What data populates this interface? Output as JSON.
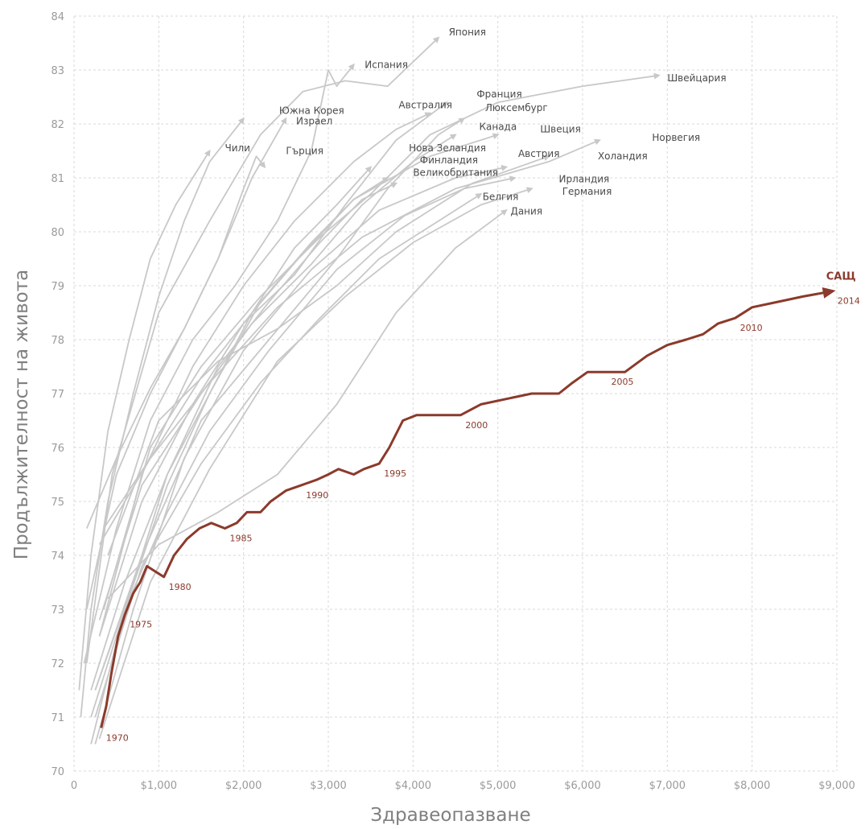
{
  "chart_data": {
    "type": "line",
    "xlabel": "Здравеопазване",
    "ylabel": "Продължителност на живота",
    "xlim": [
      0,
      9000
    ],
    "ylim": [
      70,
      84
    ],
    "x_ticks": [
      {
        "value": 0,
        "label": "0"
      },
      {
        "value": 1000,
        "label": "$1,000"
      },
      {
        "value": 2000,
        "label": "$2,000"
      },
      {
        "value": 3000,
        "label": "$3,000"
      },
      {
        "value": 4000,
        "label": "$4,000"
      },
      {
        "value": 5000,
        "label": "$5,000"
      },
      {
        "value": 6000,
        "label": "$6,000"
      },
      {
        "value": 7000,
        "label": "$7,000"
      },
      {
        "value": 8000,
        "label": "$8,000"
      },
      {
        "value": 9000,
        "label": "$9,000"
      }
    ],
    "y_ticks": [
      {
        "value": 70,
        "label": "70"
      },
      {
        "value": 71,
        "label": "71"
      },
      {
        "value": 72,
        "label": "72"
      },
      {
        "value": 73,
        "label": "73"
      },
      {
        "value": 74,
        "label": "74"
      },
      {
        "value": 75,
        "label": "75"
      },
      {
        "value": 76,
        "label": "76"
      },
      {
        "value": 77,
        "label": "77"
      },
      {
        "value": 78,
        "label": "78"
      },
      {
        "value": 79,
        "label": "79"
      },
      {
        "value": 80,
        "label": "80"
      },
      {
        "value": 81,
        "label": "81"
      },
      {
        "value": 82,
        "label": "82"
      },
      {
        "value": 83,
        "label": "83"
      },
      {
        "value": 84,
        "label": "84"
      }
    ],
    "grid": true,
    "colors": {
      "highlight": "#8b3a2b",
      "others": "#c8c8c8",
      "grid": "#d9d9d9"
    },
    "highlight_series": {
      "name": "САЩ",
      "points": [
        [
          320,
          70.8
        ],
        [
          380,
          71.2
        ],
        [
          440,
          71.8
        ],
        [
          520,
          72.5
        ],
        [
          600,
          72.9
        ],
        [
          700,
          73.3
        ],
        [
          780,
          73.5
        ],
        [
          860,
          73.8
        ],
        [
          960,
          73.7
        ],
        [
          1060,
          73.6
        ],
        [
          1180,
          74.0
        ],
        [
          1330,
          74.3
        ],
        [
          1480,
          74.5
        ],
        [
          1620,
          74.6
        ],
        [
          1780,
          74.5
        ],
        [
          1920,
          74.6
        ],
        [
          2040,
          74.8
        ],
        [
          2200,
          74.8
        ],
        [
          2320,
          75.0
        ],
        [
          2500,
          75.2
        ],
        [
          2680,
          75.3
        ],
        [
          2860,
          75.4
        ],
        [
          3000,
          75.5
        ],
        [
          3120,
          75.6
        ],
        [
          3300,
          75.5
        ],
        [
          3420,
          75.6
        ],
        [
          3600,
          75.7
        ],
        [
          3720,
          76.0
        ],
        [
          3880,
          76.5
        ],
        [
          4040,
          76.6
        ],
        [
          4280,
          76.6
        ],
        [
          4560,
          76.6
        ],
        [
          4800,
          76.8
        ],
        [
          5100,
          76.9
        ],
        [
          5400,
          77.0
        ],
        [
          5720,
          77.0
        ],
        [
          5880,
          77.2
        ],
        [
          6060,
          77.4
        ],
        [
          6280,
          77.4
        ],
        [
          6500,
          77.4
        ],
        [
          6760,
          77.7
        ],
        [
          7000,
          77.9
        ],
        [
          7220,
          78.0
        ],
        [
          7420,
          78.1
        ],
        [
          7600,
          78.3
        ],
        [
          7800,
          78.4
        ],
        [
          8000,
          78.6
        ],
        [
          8300,
          78.7
        ],
        [
          8600,
          78.8
        ],
        [
          8950,
          78.9
        ]
      ],
      "year_labels": [
        {
          "year": "1970",
          "x": 320,
          "y": 70.8
        },
        {
          "year": "1975",
          "x": 600,
          "y": 72.9
        },
        {
          "year": "1980",
          "x": 1060,
          "y": 73.6
        },
        {
          "year": "1985",
          "x": 1780,
          "y": 74.5
        },
        {
          "year": "1990",
          "x": 2680,
          "y": 75.3
        },
        {
          "year": "1995",
          "x": 3600,
          "y": 75.7
        },
        {
          "year": "2000",
          "x": 4560,
          "y": 76.6
        },
        {
          "year": "2005",
          "x": 6280,
          "y": 77.4
        },
        {
          "year": "2010",
          "x": 7800,
          "y": 78.4
        },
        {
          "year": "2014",
          "x": 8950,
          "y": 78.9
        }
      ]
    },
    "series": [
      {
        "name": "Япония",
        "points": [
          [
            150,
            72.0
          ],
          [
            450,
            75.5
          ],
          [
            1000,
            78.5
          ],
          [
            1600,
            80.2
          ],
          [
            2200,
            81.8
          ],
          [
            2700,
            82.6
          ],
          [
            3200,
            82.8
          ],
          [
            3700,
            82.7
          ],
          [
            4300,
            83.6
          ]
        ]
      },
      {
        "name": "Испания",
        "points": [
          [
            120,
            72.0
          ],
          [
            500,
            74.5
          ],
          [
            900,
            76.5
          ],
          [
            1400,
            78.0
          ],
          [
            1900,
            79.0
          ],
          [
            2400,
            80.2
          ],
          [
            2800,
            81.5
          ],
          [
            3000,
            83.0
          ],
          [
            3100,
            82.7
          ],
          [
            3300,
            83.1
          ]
        ]
      },
      {
        "name": "Швейцария",
        "points": [
          [
            350,
            73.0
          ],
          [
            900,
            76.0
          ],
          [
            1500,
            77.5
          ],
          [
            2200,
            78.8
          ],
          [
            2900,
            79.9
          ],
          [
            3500,
            80.7
          ],
          [
            4200,
            81.8
          ],
          [
            5000,
            82.4
          ],
          [
            6000,
            82.7
          ],
          [
            6900,
            82.9
          ]
        ]
      },
      {
        "name": "Южна Корея",
        "points": [
          [
            80,
            71.0
          ],
          [
            200,
            73.0
          ],
          [
            400,
            75.0
          ],
          [
            700,
            77.0
          ],
          [
            1000,
            78.8
          ],
          [
            1300,
            80.2
          ],
          [
            1600,
            81.3
          ],
          [
            2000,
            82.1
          ]
        ]
      },
      {
        "name": "Израел",
        "points": [
          [
            150,
            73.0
          ],
          [
            500,
            75.5
          ],
          [
            900,
            77.0
          ],
          [
            1300,
            78.2
          ],
          [
            1700,
            79.5
          ],
          [
            2100,
            81.0
          ],
          [
            2500,
            82.1
          ]
        ]
      },
      {
        "name": "Чили",
        "points": [
          [
            60,
            71.5
          ],
          [
            200,
            74.0
          ],
          [
            400,
            76.3
          ],
          [
            650,
            78.0
          ],
          [
            900,
            79.5
          ],
          [
            1200,
            80.5
          ],
          [
            1600,
            81.5
          ]
        ]
      },
      {
        "name": "Гърция",
        "points": [
          [
            150,
            74.5
          ],
          [
            500,
            75.8
          ],
          [
            900,
            77.1
          ],
          [
            1300,
            78.2
          ],
          [
            1700,
            79.5
          ],
          [
            2000,
            80.8
          ],
          [
            2150,
            81.4
          ],
          [
            2250,
            81.2
          ]
        ]
      },
      {
        "name": "Австралия",
        "points": [
          [
            300,
            72.5
          ],
          [
            800,
            75.5
          ],
          [
            1400,
            77.5
          ],
          [
            2000,
            79.0
          ],
          [
            2600,
            80.2
          ],
          [
            3300,
            81.3
          ],
          [
            3800,
            81.9
          ],
          [
            4200,
            82.2
          ]
        ]
      },
      {
        "name": "Франция",
        "points": [
          [
            300,
            72.5
          ],
          [
            800,
            75.0
          ],
          [
            1400,
            76.8
          ],
          [
            2000,
            78.3
          ],
          [
            2600,
            79.2
          ],
          [
            3200,
            80.5
          ],
          [
            3800,
            81.7
          ],
          [
            4400,
            82.4
          ]
        ]
      },
      {
        "name": "Люксембург",
        "points": [
          [
            250,
            71.5
          ],
          [
            800,
            74.0
          ],
          [
            1500,
            76.5
          ],
          [
            2300,
            78.0
          ],
          [
            3100,
            79.5
          ],
          [
            3700,
            80.8
          ],
          [
            4300,
            81.8
          ],
          [
            4600,
            82.1
          ]
        ]
      },
      {
        "name": "Канада",
        "points": [
          [
            300,
            72.8
          ],
          [
            800,
            75.3
          ],
          [
            1500,
            77.0
          ],
          [
            2100,
            78.3
          ],
          [
            2800,
            79.4
          ],
          [
            3400,
            80.5
          ],
          [
            4000,
            81.3
          ],
          [
            4500,
            81.8
          ]
        ]
      },
      {
        "name": "Швеция",
        "points": [
          [
            350,
            74.5
          ],
          [
            900,
            75.8
          ],
          [
            1500,
            77.3
          ],
          [
            2100,
            78.5
          ],
          [
            2700,
            79.6
          ],
          [
            3300,
            80.6
          ],
          [
            4200,
            81.4
          ],
          [
            5000,
            81.8
          ]
        ]
      },
      {
        "name": "Норвегия",
        "points": [
          [
            300,
            74.2
          ],
          [
            900,
            75.8
          ],
          [
            1600,
            77.2
          ],
          [
            2400,
            78.6
          ],
          [
            3400,
            79.9
          ],
          [
            4500,
            80.8
          ],
          [
            5600,
            81.3
          ],
          [
            6200,
            81.7
          ]
        ]
      },
      {
        "name": "Нова Зеландия",
        "points": [
          [
            250,
            71.5
          ],
          [
            700,
            73.5
          ],
          [
            1100,
            75.5
          ],
          [
            1600,
            77.0
          ],
          [
            2100,
            78.5
          ],
          [
            2600,
            79.7
          ],
          [
            3100,
            80.5
          ],
          [
            3500,
            81.2
          ]
        ]
      },
      {
        "name": "Финландия",
        "points": [
          [
            200,
            70.5
          ],
          [
            600,
            73.0
          ],
          [
            1100,
            75.3
          ],
          [
            1600,
            77.0
          ],
          [
            2200,
            78.7
          ],
          [
            2800,
            79.8
          ],
          [
            3300,
            80.6
          ],
          [
            3700,
            81.0
          ]
        ]
      },
      {
        "name": "Великобритания",
        "points": [
          [
            200,
            71.5
          ],
          [
            600,
            73.5
          ],
          [
            1100,
            75.5
          ],
          [
            1700,
            77.5
          ],
          [
            2300,
            78.7
          ],
          [
            2900,
            79.8
          ],
          [
            3400,
            80.6
          ],
          [
            3800,
            80.9
          ]
        ]
      },
      {
        "name": "Австрия",
        "points": [
          [
            250,
            70.5
          ],
          [
            700,
            73.0
          ],
          [
            1300,
            75.8
          ],
          [
            2000,
            77.8
          ],
          [
            2800,
            79.3
          ],
          [
            3600,
            80.4
          ],
          [
            4500,
            81.0
          ],
          [
            5100,
            81.2
          ]
        ]
      },
      {
        "name": "Холандия",
        "points": [
          [
            400,
            74.0
          ],
          [
            1000,
            76.5
          ],
          [
            1700,
            77.6
          ],
          [
            2400,
            78.2
          ],
          [
            3100,
            79.0
          ],
          [
            3800,
            80.0
          ],
          [
            4700,
            80.9
          ],
          [
            5600,
            81.4
          ]
        ]
      },
      {
        "name": "Ирландия",
        "points": [
          [
            200,
            71.0
          ],
          [
            600,
            73.0
          ],
          [
            1100,
            74.8
          ],
          [
            1600,
            76.3
          ],
          [
            2300,
            77.8
          ],
          [
            3100,
            79.3
          ],
          [
            3900,
            80.3
          ],
          [
            4600,
            80.8
          ],
          [
            5200,
            81.0
          ]
        ]
      },
      {
        "name": "Германия",
        "points": [
          [
            300,
            70.6
          ],
          [
            900,
            73.5
          ],
          [
            1600,
            75.6
          ],
          [
            2400,
            77.6
          ],
          [
            3200,
            78.8
          ],
          [
            4000,
            79.8
          ],
          [
            4800,
            80.5
          ],
          [
            5400,
            80.8
          ]
        ]
      },
      {
        "name": "Белгия",
        "points": [
          [
            250,
            71.0
          ],
          [
            800,
            73.8
          ],
          [
            1500,
            75.7
          ],
          [
            2200,
            77.2
          ],
          [
            2900,
            78.4
          ],
          [
            3600,
            79.5
          ],
          [
            4300,
            80.2
          ],
          [
            4800,
            80.7
          ]
        ]
      },
      {
        "name": "Дания",
        "points": [
          [
            400,
            73.2
          ],
          [
            1000,
            74.2
          ],
          [
            1700,
            74.8
          ],
          [
            2400,
            75.5
          ],
          [
            3100,
            76.8
          ],
          [
            3800,
            78.5
          ],
          [
            4500,
            79.7
          ],
          [
            5100,
            80.4
          ]
        ]
      }
    ],
    "labels": [
      {
        "text": "Япония",
        "x": 4420,
        "y": 83.7
      },
      {
        "text": "Испания",
        "x": 3430,
        "y": 83.1
      },
      {
        "text": "Швейцария",
        "x": 7000,
        "y": 82.85
      },
      {
        "text": "Франция",
        "x": 4750,
        "y": 82.55
      },
      {
        "text": "Австралия",
        "x": 3830,
        "y": 82.35
      },
      {
        "text": "Люксембург",
        "x": 4850,
        "y": 82.3
      },
      {
        "text": "Южна Корея",
        "x": 2420,
        "y": 82.25
      },
      {
        "text": "Израел",
        "x": 2620,
        "y": 82.05
      },
      {
        "text": "Канада",
        "x": 4780,
        "y": 81.95
      },
      {
        "text": "Швеция",
        "x": 5500,
        "y": 81.9
      },
      {
        "text": "Норвегия",
        "x": 6820,
        "y": 81.75
      },
      {
        "text": "Чили",
        "x": 1780,
        "y": 81.55
      },
      {
        "text": "Гърция",
        "x": 2500,
        "y": 81.5
      },
      {
        "text": "Нова Зеландия",
        "x": 3950,
        "y": 81.55
      },
      {
        "text": "Австрия",
        "x": 5240,
        "y": 81.45
      },
      {
        "text": "Холандия",
        "x": 6180,
        "y": 81.4
      },
      {
        "text": "Финландия",
        "x": 4080,
        "y": 81.33
      },
      {
        "text": "Великобритания",
        "x": 4000,
        "y": 81.1
      },
      {
        "text": "Ирландия",
        "x": 5720,
        "y": 80.98
      },
      {
        "text": "Германия",
        "x": 5760,
        "y": 80.75
      },
      {
        "text": "Белгия",
        "x": 4820,
        "y": 80.65
      },
      {
        "text": "Дания",
        "x": 5150,
        "y": 80.38
      }
    ]
  }
}
